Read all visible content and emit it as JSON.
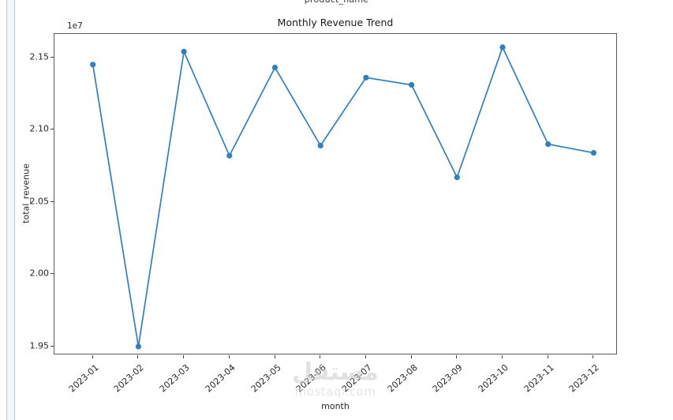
{
  "page": {
    "top_clipped_label": "product_name"
  },
  "figure": {
    "title": "Monthly Revenue Trend",
    "offset_label": "1e7",
    "xlabel": "month",
    "ylabel": "total_revenue"
  },
  "watermark": {
    "logo_text": "مستقل",
    "domain_text": "mostaql.com"
  },
  "colors": {
    "line": "#2f7fc1",
    "spine": "#5a5a5a",
    "text": "#262626",
    "watermark": "#cfcfcf",
    "left_strip_fill": "#f3f6fa",
    "left_strip_border": "#bdc7d6"
  },
  "chart_data": {
    "type": "line",
    "title": "Monthly Revenue Trend",
    "xlabel": "month",
    "ylabel": "total_revenue",
    "offset_text": "1e7",
    "categories": [
      "2023-01",
      "2023-02",
      "2023-03",
      "2023-04",
      "2023-05",
      "2023-06",
      "2023-07",
      "2023-08",
      "2023-09",
      "2023-10",
      "2023-11",
      "2023-12"
    ],
    "values": [
      21450000,
      19500000,
      21540000,
      20820000,
      21430000,
      20890000,
      21360000,
      21310000,
      20670000,
      21570000,
      20900000,
      20840000
    ],
    "y_ticks": [
      {
        "value": 19500000,
        "label": "1.95"
      },
      {
        "value": 20000000,
        "label": "2.00"
      },
      {
        "value": 20500000,
        "label": "2.05"
      },
      {
        "value": 21000000,
        "label": "2.10"
      },
      {
        "value": 21500000,
        "label": "2.15"
      }
    ],
    "ylim": [
      19440000,
      21662000
    ],
    "grid": false,
    "legend_position": null,
    "marker": "o",
    "line_color": "#2f7fc1"
  }
}
